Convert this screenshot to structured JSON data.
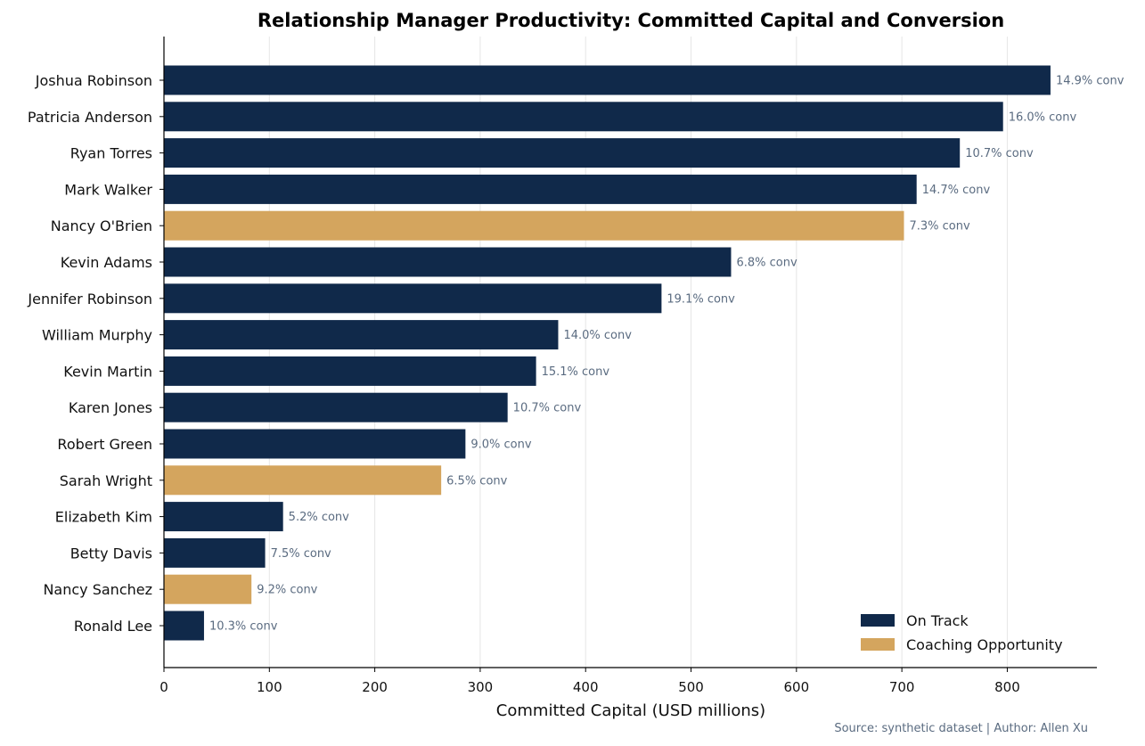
{
  "chart_data": {
    "type": "bar",
    "orientation": "horizontal",
    "title": "Relationship Manager Productivity: Committed Capital and Conversion",
    "xlabel": "Committed Capital (USD millions)",
    "ylabel": "",
    "xlim": [
      0,
      885
    ],
    "xticks": [
      0,
      100,
      200,
      300,
      400,
      500,
      600,
      700,
      800
    ],
    "grid": "vertical",
    "legend_position": "bottom-right",
    "categories": [
      "Joshua Robinson",
      "Patricia Anderson",
      "Ryan Torres",
      "Mark Walker",
      "Nancy O'Brien",
      "Kevin Adams",
      "Jennifer Robinson",
      "William Murphy",
      "Kevin Martin",
      "Karen Jones",
      "Robert Green",
      "Sarah Wright",
      "Elizabeth Kim",
      "Betty Davis",
      "Nancy Sanchez",
      "Ronald Lee"
    ],
    "values": [
      841,
      796,
      755,
      714,
      702,
      538,
      472,
      374,
      353,
      326,
      286,
      263,
      113,
      96,
      83,
      38
    ],
    "data_labels": [
      "14.9% conv",
      "16.0% conv",
      "10.7% conv",
      "14.7% conv",
      "7.3% conv",
      "6.8% conv",
      "19.1% conv",
      "14.0% conv",
      "15.1% conv",
      "10.7% conv",
      "9.0% conv",
      "6.5% conv",
      "5.2% conv",
      "7.5% conv",
      "9.2% conv",
      "10.3% conv"
    ],
    "status": [
      "On Track",
      "On Track",
      "On Track",
      "On Track",
      "Coaching Opportunity",
      "On Track",
      "On Track",
      "On Track",
      "On Track",
      "On Track",
      "On Track",
      "Coaching Opportunity",
      "On Track",
      "On Track",
      "Coaching Opportunity",
      "On Track"
    ],
    "legend": [
      {
        "name": "On Track",
        "color": "#10294a"
      },
      {
        "name": "Coaching Opportunity",
        "color": "#d4a55e"
      }
    ],
    "source_note": "Source: synthetic dataset | Author: Allen Xu"
  }
}
